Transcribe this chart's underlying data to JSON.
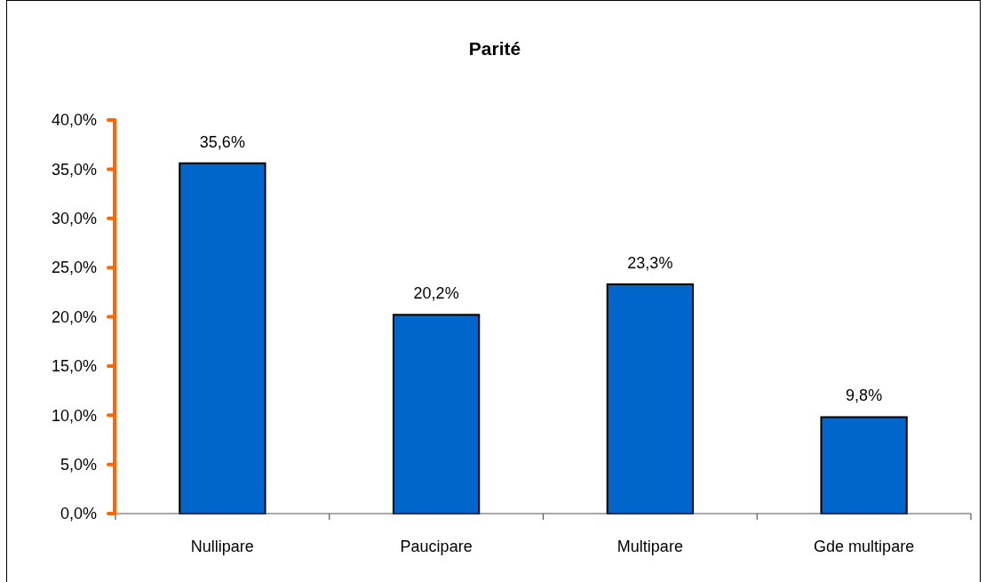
{
  "chart_data": {
    "type": "bar",
    "title": "Parité",
    "categories": [
      "Nullipare",
      "Paucipare",
      "Multipare",
      "Gde multipare"
    ],
    "values": [
      35.6,
      20.2,
      23.3,
      9.8
    ],
    "value_labels": [
      "35,6%",
      "20,2%",
      "23,3%",
      "9,8%"
    ],
    "color": "#0066cc",
    "ylim": [
      0,
      40
    ],
    "yticks": [
      {
        "value": 0,
        "label": "0,0%"
      },
      {
        "value": 5,
        "label": "5,0%"
      },
      {
        "value": 10,
        "label": "10,0%"
      },
      {
        "value": 15,
        "label": "15,0%"
      },
      {
        "value": 20,
        "label": "20,0%"
      },
      {
        "value": 25,
        "label": "25,0%"
      },
      {
        "value": 30,
        "label": "30,0%"
      },
      {
        "value": 35,
        "label": "35,0%"
      },
      {
        "value": 40,
        "label": "40,0%"
      }
    ],
    "grid": false
  }
}
